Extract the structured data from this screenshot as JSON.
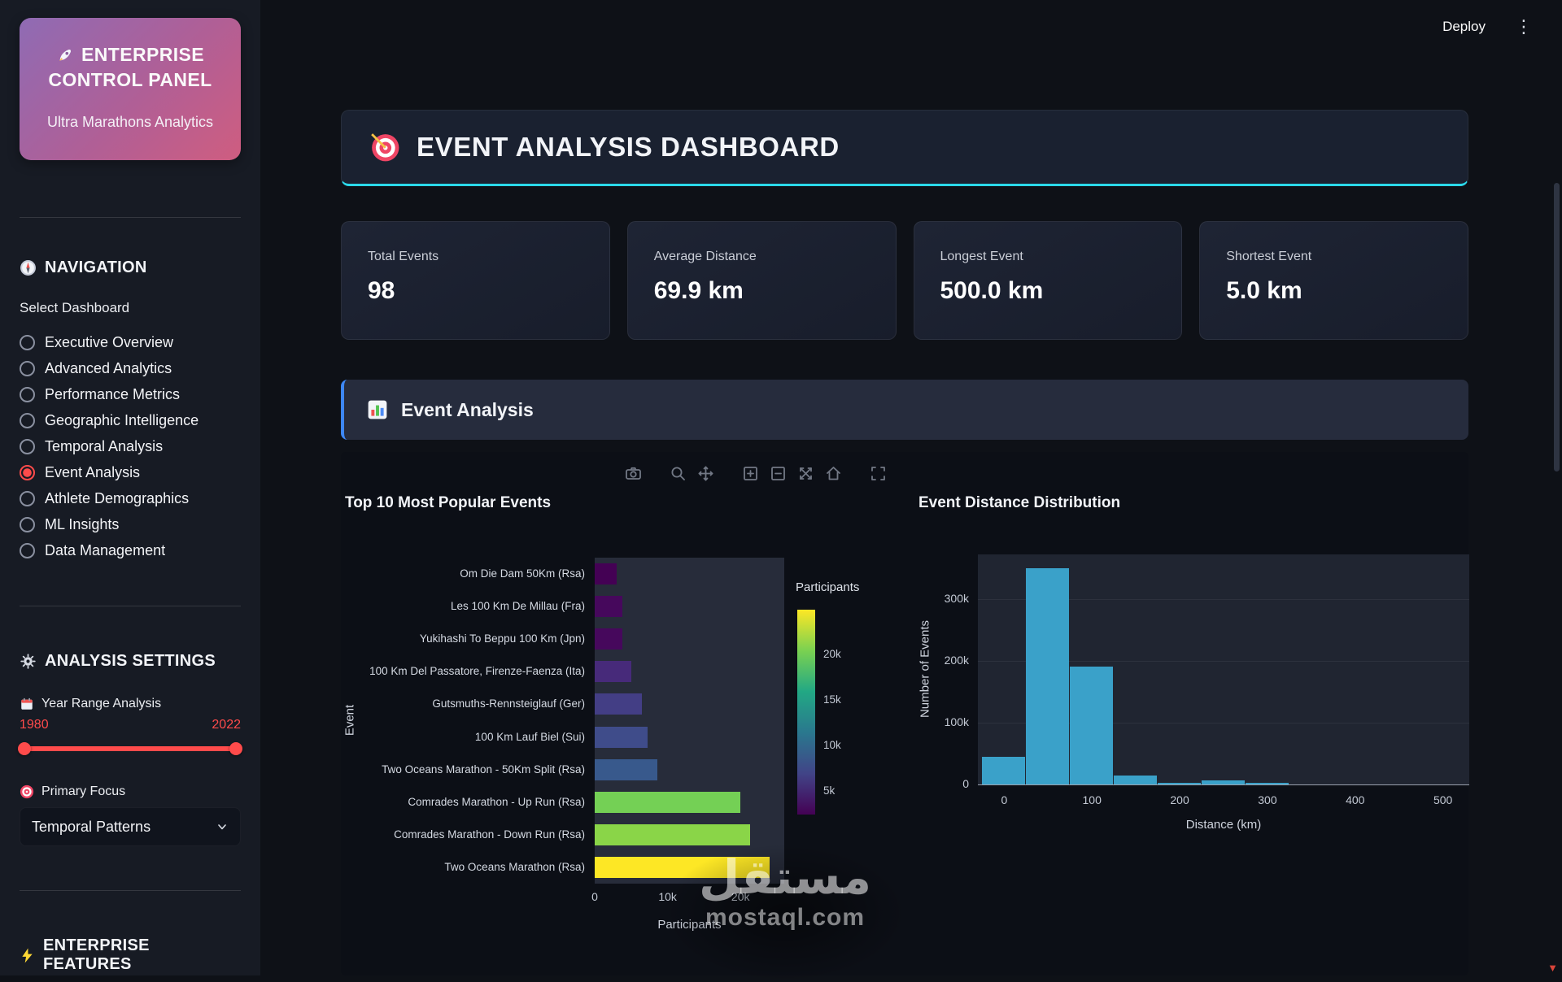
{
  "window": {
    "deploy_label": "Deploy"
  },
  "icons": {
    "kebab": "⋮",
    "corner": "▼"
  },
  "colors": {
    "primary_red": "#ff4b4b",
    "accent_cyan": "#2bd9ea",
    "section_accent": "#3d87f5",
    "histogram_bar": "#3aa1c9",
    "sidebar_gradient_start": "#8f6bb4",
    "sidebar_gradient_end": "#cf5d80"
  },
  "sidebar": {
    "logo": {
      "title_line1": "ENTERPRISE",
      "title_line2": "CONTROL PANEL",
      "subtitle": "Ultra Marathons Analytics"
    },
    "navigation": {
      "heading": "NAVIGATION",
      "select_label": "Select Dashboard",
      "items": [
        {
          "label": "Executive Overview",
          "selected": false
        },
        {
          "label": "Advanced Analytics",
          "selected": false
        },
        {
          "label": "Performance Metrics",
          "selected": false
        },
        {
          "label": "Geographic Intelligence",
          "selected": false
        },
        {
          "label": "Temporal Analysis",
          "selected": false
        },
        {
          "label": "Event Analysis",
          "selected": true
        },
        {
          "label": "Athlete Demographics",
          "selected": false
        },
        {
          "label": "ML Insights",
          "selected": false
        },
        {
          "label": "Data Management",
          "selected": false
        }
      ]
    },
    "settings": {
      "heading": "ANALYSIS SETTINGS",
      "year_range": {
        "label": "Year Range Analysis",
        "min": "1980",
        "max": "2022"
      },
      "primary_focus": {
        "label": "Primary Focus",
        "value": "Temporal Patterns"
      }
    },
    "features_heading": "ENTERPRISE FEATURES"
  },
  "header": {
    "title": "EVENT ANALYSIS DASHBOARD"
  },
  "metrics": [
    {
      "label": "Total Events",
      "value": "98"
    },
    {
      "label": "Average Distance",
      "value": "69.9 km"
    },
    {
      "label": "Longest Event",
      "value": "500.0 km"
    },
    {
      "label": "Shortest Event",
      "value": "5.0 km"
    }
  ],
  "section": {
    "title": "Event Analysis"
  },
  "modebar": {
    "tools": [
      "camera",
      "zoom",
      "pan",
      "zoom-in",
      "zoom-out",
      "autoscale",
      "home",
      "fullscreen"
    ]
  },
  "watermark": {
    "arabic": "مستقل",
    "domain": "mostaql.com"
  },
  "chart_data": [
    {
      "type": "bar",
      "orientation": "horizontal",
      "title": "Top 10 Most Popular Events",
      "xlabel": "Participants",
      "ylabel": "Event",
      "categories": [
        "Om Die Dam 50Km (Rsa)",
        "Les 100 Km De Millau (Fra)",
        "Yukihashi To Beppu 100 Km (Jpn)",
        "100 Km Del Passatore, Firenze-Faenza (Ita)",
        "Gutsmuths-Rennsteiglauf (Ger)",
        "100 Km Lauf Biel (Sui)",
        "Two Oceans Marathon - 50Km Split (Rsa)",
        "Comrades Marathon - Up Run (Rsa)",
        "Comrades Marathon - Down Run (Rsa)",
        "Two Oceans Marathon (Rsa)"
      ],
      "values": [
        3000,
        3800,
        3800,
        5000,
        6500,
        7300,
        8600,
        20000,
        21300,
        24000
      ],
      "colors": [
        "#440154",
        "#46085c",
        "#46085c",
        "#472a7a",
        "#433e85",
        "#3f4c8a",
        "#38598c",
        "#74d055",
        "#8ad548",
        "#fde725"
      ],
      "xticks": [
        "0",
        "10k",
        "20k"
      ],
      "xtick_values": [
        0,
        10000,
        20000
      ],
      "xlim": [
        0,
        26000
      ],
      "grid": false,
      "colorbar": {
        "title": "Participants",
        "ticks": [
          "20k",
          "15k",
          "10k",
          "5k"
        ],
        "tick_values": [
          20000,
          15000,
          10000,
          5000
        ],
        "min": 2500,
        "max": 25000,
        "colors": [
          "#440154",
          "#414487",
          "#2a788e",
          "#22a884",
          "#7ad151",
          "#fde725"
        ]
      }
    },
    {
      "type": "bar",
      "subtype": "histogram",
      "title": "Event Distance Distribution",
      "xlabel": "Distance (km)",
      "ylabel": "Number of Events",
      "bin_centers": [
        0,
        50,
        100,
        150,
        200,
        250,
        300,
        350,
        400,
        450,
        500
      ],
      "bin_width": 50,
      "values": [
        45000,
        350000,
        190000,
        14000,
        3000,
        6000,
        2000,
        0,
        0,
        0,
        0
      ],
      "bar_color": "#3aa1c9",
      "xticks": [
        "0",
        "100",
        "200",
        "300",
        "400",
        "500"
      ],
      "xtick_values": [
        0,
        100,
        200,
        300,
        400,
        500
      ],
      "yticks": [
        "0",
        "100k",
        "200k",
        "300k"
      ],
      "ytick_values": [
        0,
        100000,
        200000,
        300000
      ],
      "xlim": [
        -30,
        530
      ],
      "ylim": [
        0,
        372000
      ],
      "grid": true
    }
  ]
}
